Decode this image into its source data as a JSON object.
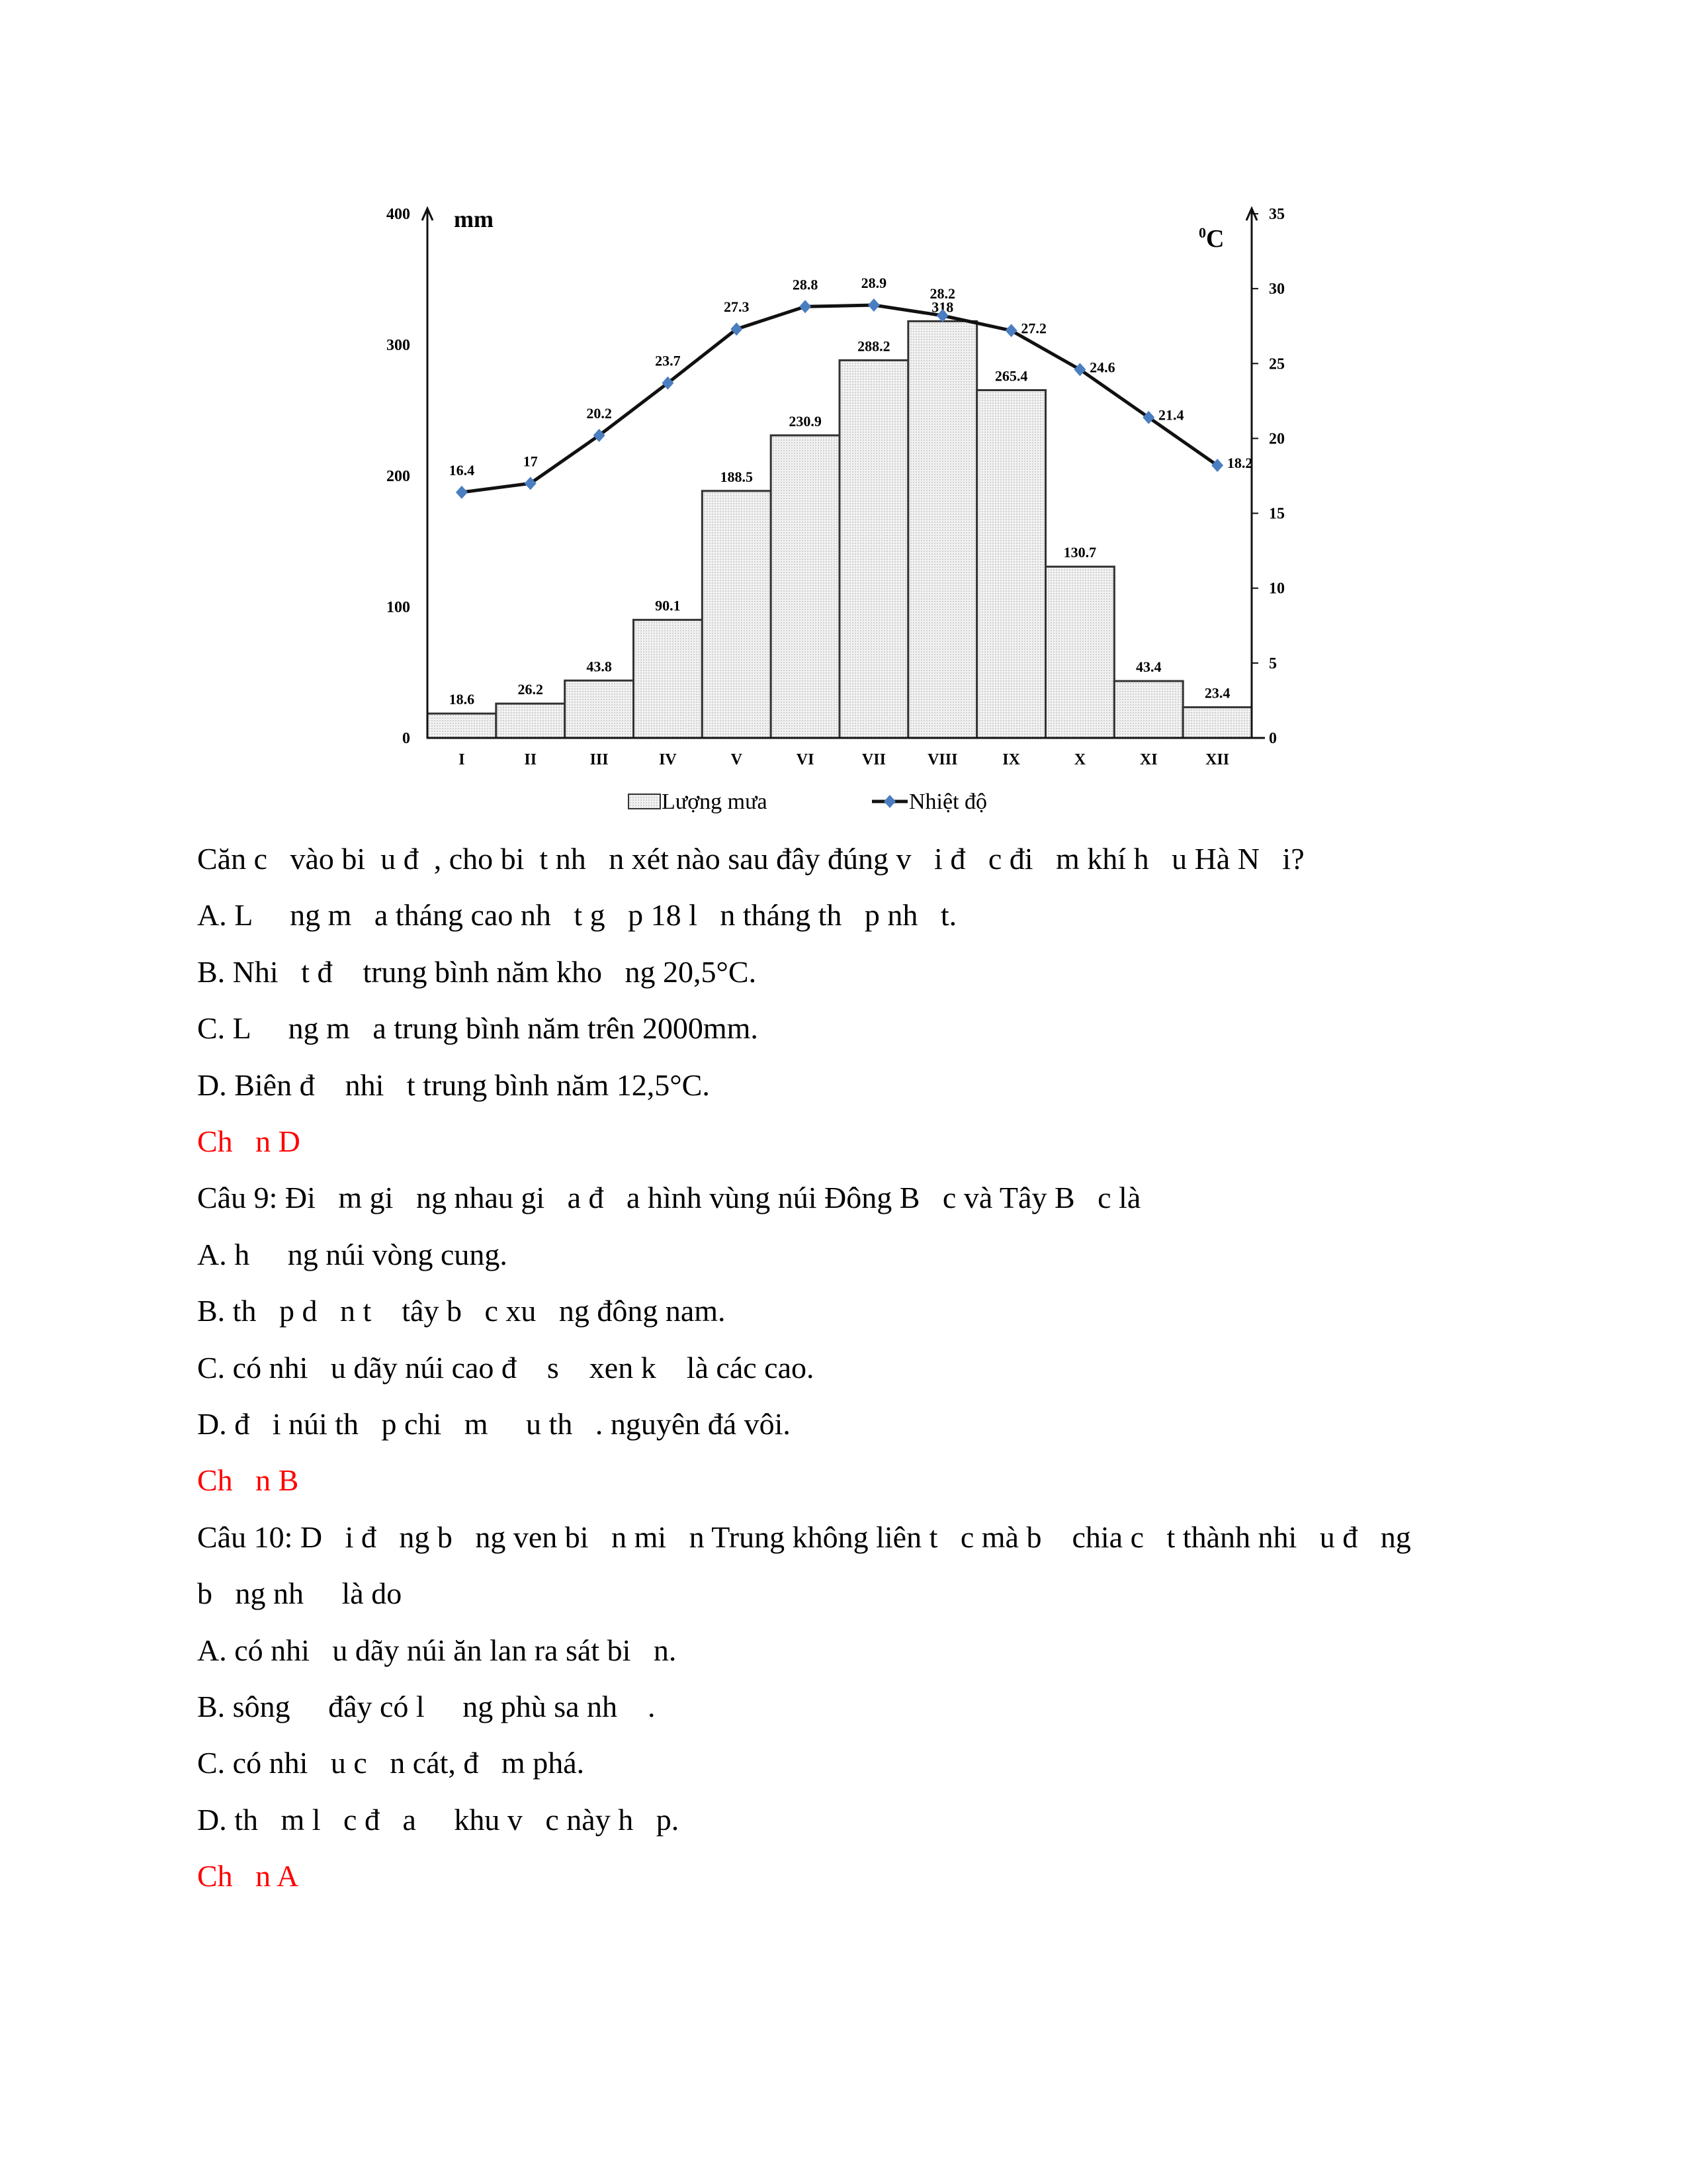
{
  "chart_data": {
    "type": "bar+line",
    "categories": [
      "I",
      "II",
      "III",
      "IV",
      "V",
      "VI",
      "VII",
      "VIII",
      "IX",
      "X",
      "XI",
      "XII"
    ],
    "series": [
      {
        "name": "Lượng mưa",
        "type": "bar",
        "axis": "left",
        "values": [
          18.6,
          26.2,
          43.8,
          90.1,
          188.5,
          230.9,
          288.2,
          318,
          265.4,
          130.7,
          43.4,
          23.4
        ]
      },
      {
        "name": "Nhiệt độ",
        "type": "line",
        "axis": "right",
        "values": [
          16.4,
          17,
          20.2,
          23.7,
          27.3,
          28.8,
          28.9,
          28.2,
          27.2,
          24.6,
          21.4,
          18.2
        ]
      }
    ],
    "ylabel_left": "mm",
    "ylabel_right": "0C",
    "ylim_left": [
      0,
      400
    ],
    "yticks_left": [
      0,
      100,
      200,
      300,
      400
    ],
    "ylim_right": [
      0,
      35
    ],
    "yticks_right": [
      0,
      5,
      10,
      15,
      20,
      25,
      30,
      35
    ],
    "grid": false,
    "legend": "bottom",
    "colors": {
      "bar_fill": "#e4e4e4",
      "bar_stroke": "#333333",
      "line": "#111111",
      "marker": "#4a7ec0"
    }
  },
  "text": {
    "lines": [
      {
        "t": "Căn c   vào bi  u đ  , cho bi  t nh   n xét nào sau đây đúng v   i đ   c đi   m khí h   u Hà N   i?",
        "red": false
      },
      {
        "t": "A. L     ng m   a tháng cao nh   t g   p 18 l   n tháng th   p nh   t.",
        "red": false
      },
      {
        "t": "B. Nhi   t đ    trung bình năm kho   ng 20,5°C.",
        "red": false
      },
      {
        "t": "C. L     ng m   a trung bình năm trên 2000mm.",
        "red": false
      },
      {
        "t": "D. Biên đ    nhi   t trung bình năm 12,5°C.",
        "red": false
      },
      {
        "t": "Ch   n D",
        "red": true
      },
      {
        "t": "Câu 9: Đi   m gi   ng nhau gi   a đ   a hình vùng núi Đông B   c và Tây B   c là",
        "red": false
      },
      {
        "t": "A. h     ng núi vòng cung.",
        "red": false
      },
      {
        "t": "B. th   p d   n t    tây b   c xu   ng đông nam.",
        "red": false
      },
      {
        "t": "C. có nhi   u dãy núi cao đ    s    xen k    là các cao.",
        "red": false
      },
      {
        "t": "D. đ   i núi th   p chi   m     u th   . nguyên đá vôi.",
        "red": false
      },
      {
        "t": "Ch   n B",
        "red": true
      },
      {
        "t": "Câu 10: D   i đ   ng b   ng ven bi   n mi   n Trung không liên t   c mà b    chia c   t thành nhi   u đ   ng",
        "red": false
      },
      {
        "t": "b   ng nh     là do",
        "red": false
      },
      {
        "t": "A. có nhi   u dãy núi ăn lan ra sát bi   n.",
        "red": false
      },
      {
        "t": "B. sông     đây có l     ng phù sa nh    .",
        "red": false
      },
      {
        "t": "C. có nhi   u c   n cát, đ   m phá.",
        "red": false
      },
      {
        "t": "D. th   m l   c đ   a     khu v   c này h   p.",
        "red": false
      },
      {
        "t": "Ch   n A",
        "red": true
      }
    ]
  }
}
